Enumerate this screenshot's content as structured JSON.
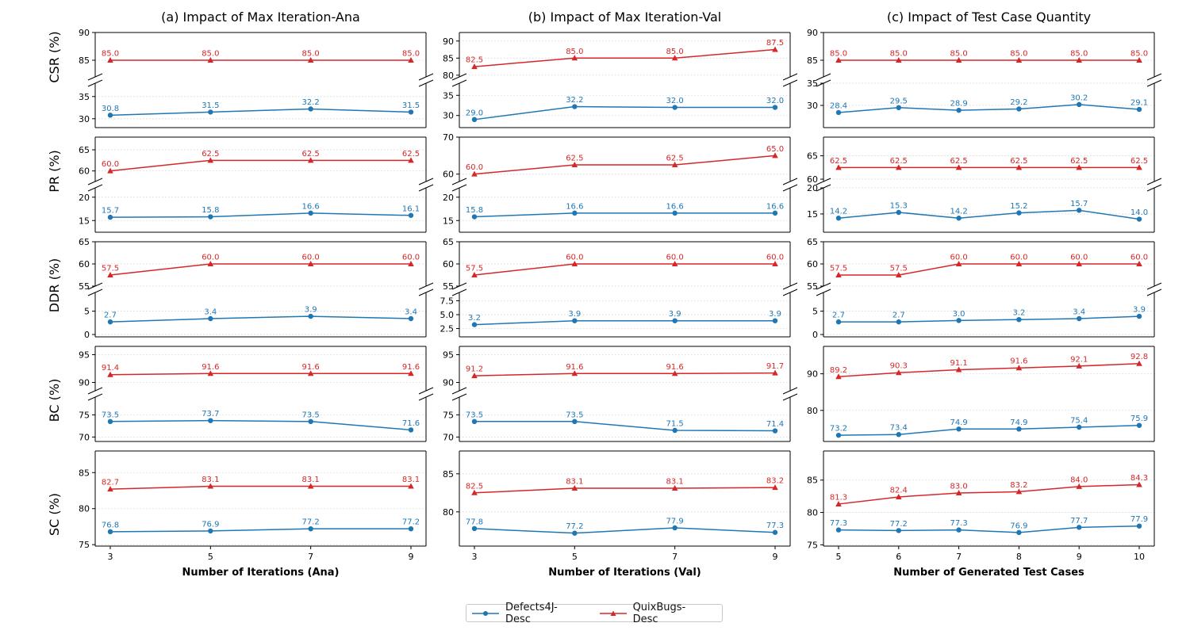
{
  "colors": {
    "defects": "#1f77b4",
    "quix": "#d62728",
    "grid": "#d3d3d3",
    "axis": "#000000"
  },
  "legend": {
    "defects": "Defects4J-Desc",
    "quix": "QuixBugs-Desc"
  },
  "chart_data": {
    "type": "line",
    "series_names": [
      "Defects4J-Desc",
      "QuixBugs-Desc"
    ],
    "columns": [
      {
        "title": "(a) Impact of Max Iteration-Ana",
        "xlabel": "Number of Iterations (Ana)",
        "x": [
          3,
          5,
          7,
          9
        ],
        "xticks": [
          3,
          5,
          7,
          9
        ],
        "metrics": {
          "CSR": {
            "defects": [
              30.8,
              31.5,
              32.2,
              31.5
            ],
            "quix": [
              85.0,
              85.0,
              85.0,
              85.0
            ],
            "top_ylim": [
              82,
              90
            ],
            "top_ticks": [
              85,
              90
            ],
            "bottom_ylim": [
              28,
              38
            ],
            "bottom_ticks": [
              30,
              35
            ]
          },
          "PR": {
            "defects": [
              15.7,
              15.8,
              16.6,
              16.1
            ],
            "quix": [
              60.0,
              62.5,
              62.5,
              62.5
            ],
            "top_ylim": [
              57.5,
              68
            ],
            "top_ticks": [
              60,
              65
            ],
            "bottom_ylim": [
              12.5,
              22
            ],
            "bottom_ticks": [
              15,
              20
            ]
          },
          "DDR": {
            "defects": [
              2.7,
              3.4,
              3.9,
              3.4
            ],
            "quix": [
              57.5,
              60.0,
              60.0,
              60.0
            ],
            "top_ylim": [
              55,
              65
            ],
            "top_ticks": [
              55,
              60,
              65
            ],
            "bottom_ylim": [
              -0.5,
              9
            ],
            "bottom_ticks": [
              0,
              5
            ]
          },
          "BC": {
            "defects": [
              73.5,
              73.7,
              73.5,
              71.6
            ],
            "quix": [
              91.4,
              91.6,
              91.6,
              91.6
            ],
            "top_ylim": [
              88.5,
              96.5
            ],
            "top_ticks": [
              90,
              95
            ],
            "bottom_ylim": [
              69,
              79
            ],
            "bottom_ticks": [
              70,
              75
            ]
          },
          "SC": {
            "defects": [
              76.8,
              76.9,
              77.2,
              77.2
            ],
            "quix": [
              82.7,
              83.1,
              83.1,
              83.1
            ],
            "ylim": [
              74.8,
              88
            ],
            "ticks": [
              75,
              80,
              85
            ]
          }
        }
      },
      {
        "title": "(b) Impact of Max Iteration-Val",
        "xlabel": "Number of Iterations (Val)",
        "x": [
          3,
          5,
          7,
          9
        ],
        "xticks": [
          3,
          5,
          7,
          9
        ],
        "metrics": {
          "CSR": {
            "defects": [
              29.0,
              32.2,
              32.0,
              32.0
            ],
            "quix": [
              82.5,
              85.0,
              85.0,
              87.5
            ],
            "top_ylim": [
              79.5,
              92.5
            ],
            "top_ticks": [
              80,
              85,
              90
            ],
            "bottom_ylim": [
              27,
              38
            ],
            "bottom_ticks": [
              30,
              35
            ]
          },
          "PR": {
            "defects": [
              15.8,
              16.6,
              16.6,
              16.6
            ],
            "quix": [
              60.0,
              62.5,
              62.5,
              65.0
            ],
            "top_ylim": [
              58,
              70
            ],
            "top_ticks": [
              60,
              70
            ],
            "bottom_ylim": [
              12.5,
              22
            ],
            "bottom_ticks": [
              15,
              20
            ]
          },
          "DDR": {
            "defects": [
              3.2,
              3.9,
              3.9,
              3.9
            ],
            "quix": [
              57.5,
              60.0,
              60.0,
              60.0
            ],
            "top_ylim": [
              55,
              65
            ],
            "top_ticks": [
              55,
              60,
              65
            ],
            "bottom_ylim": [
              1,
              9
            ],
            "bottom_ticks": [
              2.5,
              5.0,
              7.5
            ]
          },
          "BC": {
            "defects": [
              73.5,
              73.5,
              71.5,
              71.4
            ],
            "quix": [
              91.2,
              91.6,
              91.6,
              91.7
            ],
            "top_ylim": [
              88.5,
              96.5
            ],
            "top_ticks": [
              90,
              95
            ],
            "bottom_ylim": [
              69,
              79
            ],
            "bottom_ticks": [
              70,
              75
            ]
          },
          "SC": {
            "defects": [
              77.8,
              77.2,
              77.9,
              77.3
            ],
            "quix": [
              82.5,
              83.1,
              83.1,
              83.2
            ],
            "ylim": [
              75.5,
              88
            ],
            "ticks": [
              80,
              85
            ]
          }
        }
      },
      {
        "title": "(c) Impact of Test Case Quantity",
        "xlabel": "Number of Generated Test Cases",
        "x": [
          5,
          6,
          7,
          8,
          9,
          10
        ],
        "xticks": [
          5,
          6,
          7,
          8,
          9,
          10
        ],
        "metrics": {
          "CSR": {
            "defects": [
              28.4,
              29.5,
              28.9,
              29.2,
              30.2,
              29.1
            ],
            "quix": [
              85.0,
              85.0,
              85.0,
              85.0,
              85.0,
              85.0
            ],
            "top_ylim": [
              82,
              90
            ],
            "top_ticks": [
              85,
              90
            ],
            "bottom_ylim": [
              25,
              35
            ],
            "bottom_ticks": [
              30,
              35
            ]
          },
          "PR": {
            "defects": [
              14.2,
              15.3,
              14.2,
              15.2,
              15.7,
              14.0
            ],
            "quix": [
              62.5,
              62.5,
              62.5,
              62.5,
              62.5,
              62.5
            ],
            "top_ylim": [
              59.5,
              69
            ],
            "top_ticks": [
              60,
              65
            ],
            "bottom_ylim": [
              11.5,
              20
            ],
            "bottom_ticks": [
              15,
              20
            ]
          },
          "DDR": {
            "defects": [
              2.7,
              2.7,
              3.0,
              3.2,
              3.4,
              3.9
            ],
            "quix": [
              57.5,
              57.5,
              60.0,
              60.0,
              60.0,
              60.0
            ],
            "top_ylim": [
              55,
              65
            ],
            "top_ticks": [
              55,
              60,
              65
            ],
            "bottom_ylim": [
              -0.5,
              9
            ],
            "bottom_ticks": [
              0,
              5
            ]
          },
          "BC": {
            "defects": [
              73.2,
              73.4,
              74.9,
              74.9,
              75.4,
              75.9
            ],
            "quix": [
              89.2,
              90.3,
              91.1,
              91.6,
              92.1,
              92.8
            ],
            "ylim": [
              71.5,
              97.5
            ],
            "ticks": [
              80,
              90
            ]
          },
          "SC": {
            "defects": [
              77.3,
              77.2,
              77.3,
              76.9,
              77.7,
              77.9
            ],
            "quix": [
              81.3,
              82.4,
              83.0,
              83.2,
              84.0,
              84.3
            ],
            "ylim": [
              74.8,
              89.5
            ],
            "ticks": [
              75,
              80,
              85
            ]
          }
        }
      }
    ],
    "row_labels": {
      "CSR": "CSR (%)",
      "PR": "PR (%)",
      "DDR": "DDR (%)",
      "BC": "BC (%)",
      "SC": "SC (%)"
    },
    "grid": "dotted-horizontal",
    "legend_position": "bottom-center"
  }
}
